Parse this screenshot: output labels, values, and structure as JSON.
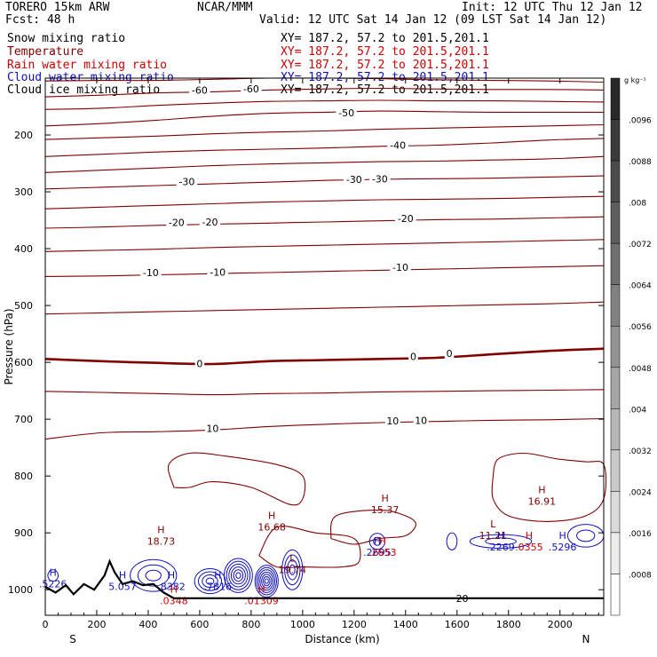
{
  "header": {
    "model": "TORERO  15km ARW",
    "center": "NCAR/MMM",
    "init": "Init: 12 UTC Thu 12 Jan 12",
    "fcst": "Fcst:   48 h",
    "valid": "Valid: 12 UTC Sat 14 Jan 12 (09 LST Sat 14 Jan 12)"
  },
  "colors": {
    "snow": "#000000",
    "temperature": "#800000",
    "rain": "#cc0000",
    "cloud_water": "#1010c0",
    "cloud_ice": "#000000"
  },
  "chart_data": {
    "type": "cross-section",
    "fields": [
      {
        "name": "Snow mixing ratio",
        "xy": "XY= 187.2, 57.2 to 201.5,201.1",
        "color": "#000000"
      },
      {
        "name": "Temperature",
        "xy": "XY= 187.2, 57.2 to 201.5,201.1",
        "color": "#800000"
      },
      {
        "name": "Rain water mixing ratio",
        "xy": "XY= 187.2, 57.2 to 201.5,201.1",
        "color": "#cc0000"
      },
      {
        "name": "Cloud water mixing ratio",
        "xy": "XY= 187.2, 57.2 to 201.5,201.1",
        "color": "#1010c0"
      },
      {
        "name": "Cloud ice mixing ratio",
        "xy": "XY= 187.2, 57.2 to 201.5,201.1",
        "color": "#000000"
      }
    ],
    "x_axis": {
      "label": "Distance (km)",
      "range": [
        0,
        2170
      ],
      "ticks": [
        0,
        200,
        400,
        600,
        800,
        1000,
        1200,
        1400,
        1600,
        1800,
        2000
      ],
      "left_end": "S",
      "right_end": "N"
    },
    "y_axis": {
      "label": "Pressure (hPa)",
      "range": [
        100,
        1045
      ],
      "ticks": [
        200,
        300,
        400,
        500,
        600,
        700,
        800,
        900,
        1000
      ]
    },
    "colorbar": {
      "unit": "g kg⁻¹",
      "labels": [
        ".0096",
        ".0088",
        ".008",
        ".0072",
        ".0064",
        ".0056",
        ".0048",
        ".004",
        ".0032",
        ".0024",
        ".0016",
        ".0008"
      ]
    },
    "temperature_isotherms": [
      {
        "t": -70,
        "p": [
          105,
          104,
          104,
          102,
          100,
          100,
          101,
          103,
          104,
          105,
          107
        ]
      },
      {
        "t": -60,
        "p": [
          133,
          130,
          126,
          124,
          121,
          119,
          118,
          119,
          120,
          120,
          121
        ]
      },
      {
        "t": -55,
        "p": [
          155,
          153,
          148,
          144,
          141,
          140,
          139,
          140,
          140,
          141,
          142
        ]
      },
      {
        "t": -50,
        "p": [
          184,
          180,
          174,
          167,
          162,
          160,
          158,
          159,
          160,
          160,
          160
        ]
      },
      {
        "t": -45,
        "p": [
          208,
          205,
          202,
          198,
          195,
          193,
          190,
          188,
          186,
          184,
          182
        ]
      },
      {
        "t": -40,
        "p": [
          238,
          234,
          230,
          227,
          225,
          223,
          220,
          218,
          214,
          209,
          206
        ]
      },
      {
        "t": -35,
        "p": [
          266,
          262,
          258,
          254,
          251,
          249,
          247,
          246,
          244,
          242,
          238
        ]
      },
      {
        "t": -30,
        "p": [
          295,
          292,
          289,
          286,
          283,
          280,
          278,
          277,
          276,
          274,
          272
        ]
      },
      {
        "t": -25,
        "p": [
          330,
          327,
          324,
          321,
          318,
          316,
          314,
          313,
          312,
          310,
          308
        ]
      },
      {
        "t": -20,
        "p": [
          364,
          362,
          359,
          357,
          355,
          353,
          351,
          349,
          348,
          346,
          344
        ]
      },
      {
        "t": -15,
        "p": [
          405,
          403,
          401,
          398,
          396,
          394,
          392,
          390,
          388,
          386,
          384
        ]
      },
      {
        "t": -10,
        "p": [
          449,
          448,
          446,
          444,
          442,
          440,
          438,
          436,
          434,
          432,
          430
        ]
      },
      {
        "t": -5,
        "p": [
          515,
          513,
          511,
          509,
          507,
          505,
          503,
          501,
          499,
          497,
          494
        ]
      },
      {
        "t": 0,
        "p": [
          594,
          598,
          601,
          603,
          598,
          596,
          594,
          592,
          586,
          580,
          576
        ]
      },
      {
        "t": 5,
        "p": [
          651,
          653,
          655,
          657,
          655,
          654,
          652,
          651,
          650,
          649,
          648
        ]
      },
      {
        "t": 10,
        "p": [
          735,
          724,
          722,
          719,
          713,
          709,
          706,
          704,
          702,
          701,
          699
        ]
      }
    ],
    "isotherm_labels": [
      {
        "text": "-60",
        "x": 600,
        "p": 121
      },
      {
        "text": "-60",
        "x": 800,
        "p": 119
      },
      {
        "text": "-50",
        "x": 1170,
        "p": 161
      },
      {
        "text": "-40",
        "x": 1370,
        "p": 218
      },
      {
        "text": "-30",
        "x": 1200,
        "p": 278
      },
      {
        "text": "-30",
        "x": 1300,
        "p": 277
      },
      {
        "text": "-30",
        "x": 550,
        "p": 282
      },
      {
        "text": "-20",
        "x": 510,
        "p": 354
      },
      {
        "text": "-20",
        "x": 640,
        "p": 353
      },
      {
        "text": "-20",
        "x": 1400,
        "p": 347
      },
      {
        "text": "-10",
        "x": 410,
        "p": 442
      },
      {
        "text": "-10",
        "x": 670,
        "p": 441
      },
      {
        "text": "-10",
        "x": 1380,
        "p": 433
      },
      {
        "text": "0",
        "x": 600,
        "p": 602
      },
      {
        "text": "0",
        "x": 1430,
        "p": 590
      },
      {
        "text": "0",
        "x": 1570,
        "p": 584
      },
      {
        "text": "10",
        "x": 650,
        "p": 716
      },
      {
        "text": "10",
        "x": 1350,
        "p": 703
      },
      {
        "text": "10",
        "x": 1460,
        "p": 702
      },
      {
        "text": "20",
        "x": 1620,
        "p": 1015
      }
    ],
    "extrema": [
      {
        "kind": "H",
        "value": "18.73",
        "x": 450,
        "p": 905,
        "color": "#800000"
      },
      {
        "kind": "H",
        "value": "16.68",
        "x": 880,
        "p": 880,
        "color": "#800000"
      },
      {
        "kind": "H",
        "value": "15.37",
        "x": 1320,
        "p": 850,
        "color": "#800000"
      },
      {
        "kind": "H",
        "value": "16.91",
        "x": 1930,
        "p": 835,
        "color": "#800000"
      },
      {
        "kind": "L",
        "value": "19.74",
        "x": 960,
        "p": 955,
        "color": "#800000"
      },
      {
        "kind": "L",
        "value": "11.21",
        "x": 1740,
        "p": 895,
        "color": "#800000"
      },
      {
        "kind": "H",
        "value": ".2695",
        "x": 1290,
        "p": 925,
        "color": "#1010c0"
      },
      {
        "kind": "H",
        "value": ".2269",
        "x": 1770,
        "p": 915,
        "color": "#1010c0"
      },
      {
        "kind": "H",
        "value": ".5296",
        "x": 2010,
        "p": 915,
        "color": "#1010c0"
      },
      {
        "kind": "H",
        "value": ".8382",
        "x": 490,
        "p": 985,
        "color": "#1010c0"
      },
      {
        "kind": "H",
        "value": ".7816",
        "x": 670,
        "p": 985,
        "color": "#1010c0"
      },
      {
        "kind": "H",
        "value": "5.057",
        "x": 300,
        "p": 985,
        "color": "#1010c0"
      },
      {
        "kind": "H",
        "value": ".5226",
        "x": 30,
        "p": 980,
        "color": "#1010c0"
      },
      {
        "kind": "H",
        "value": ".0355",
        "x": 1880,
        "p": 915,
        "color": "#cc0000"
      },
      {
        "kind": "H",
        "value": ".0348",
        "x": 500,
        "p": 1010,
        "color": "#cc0000"
      },
      {
        "kind": "H",
        "value": ".01309",
        "x": 840,
        "p": 1010,
        "color": "#cc0000"
      },
      {
        "kind": "H",
        "value": ".2653",
        "x": 1310,
        "p": 925,
        "color": "#cc0000"
      }
    ],
    "terrain": {
      "x": [
        0,
        40,
        80,
        110,
        150,
        190,
        230,
        250,
        270,
        300,
        340,
        380,
        420,
        460,
        500,
        600,
        700,
        800,
        1000,
        1200,
        1400,
        1600,
        1800,
        2000,
        2170
      ],
      "p": [
        995,
        1005,
        992,
        1008,
        990,
        1000,
        975,
        950,
        970,
        990,
        985,
        992,
        990,
        1005,
        1015,
        1015,
        1015,
        1015,
        1015,
        1015,
        1015,
        1015,
        1015,
        1015,
        1015
      ]
    }
  }
}
